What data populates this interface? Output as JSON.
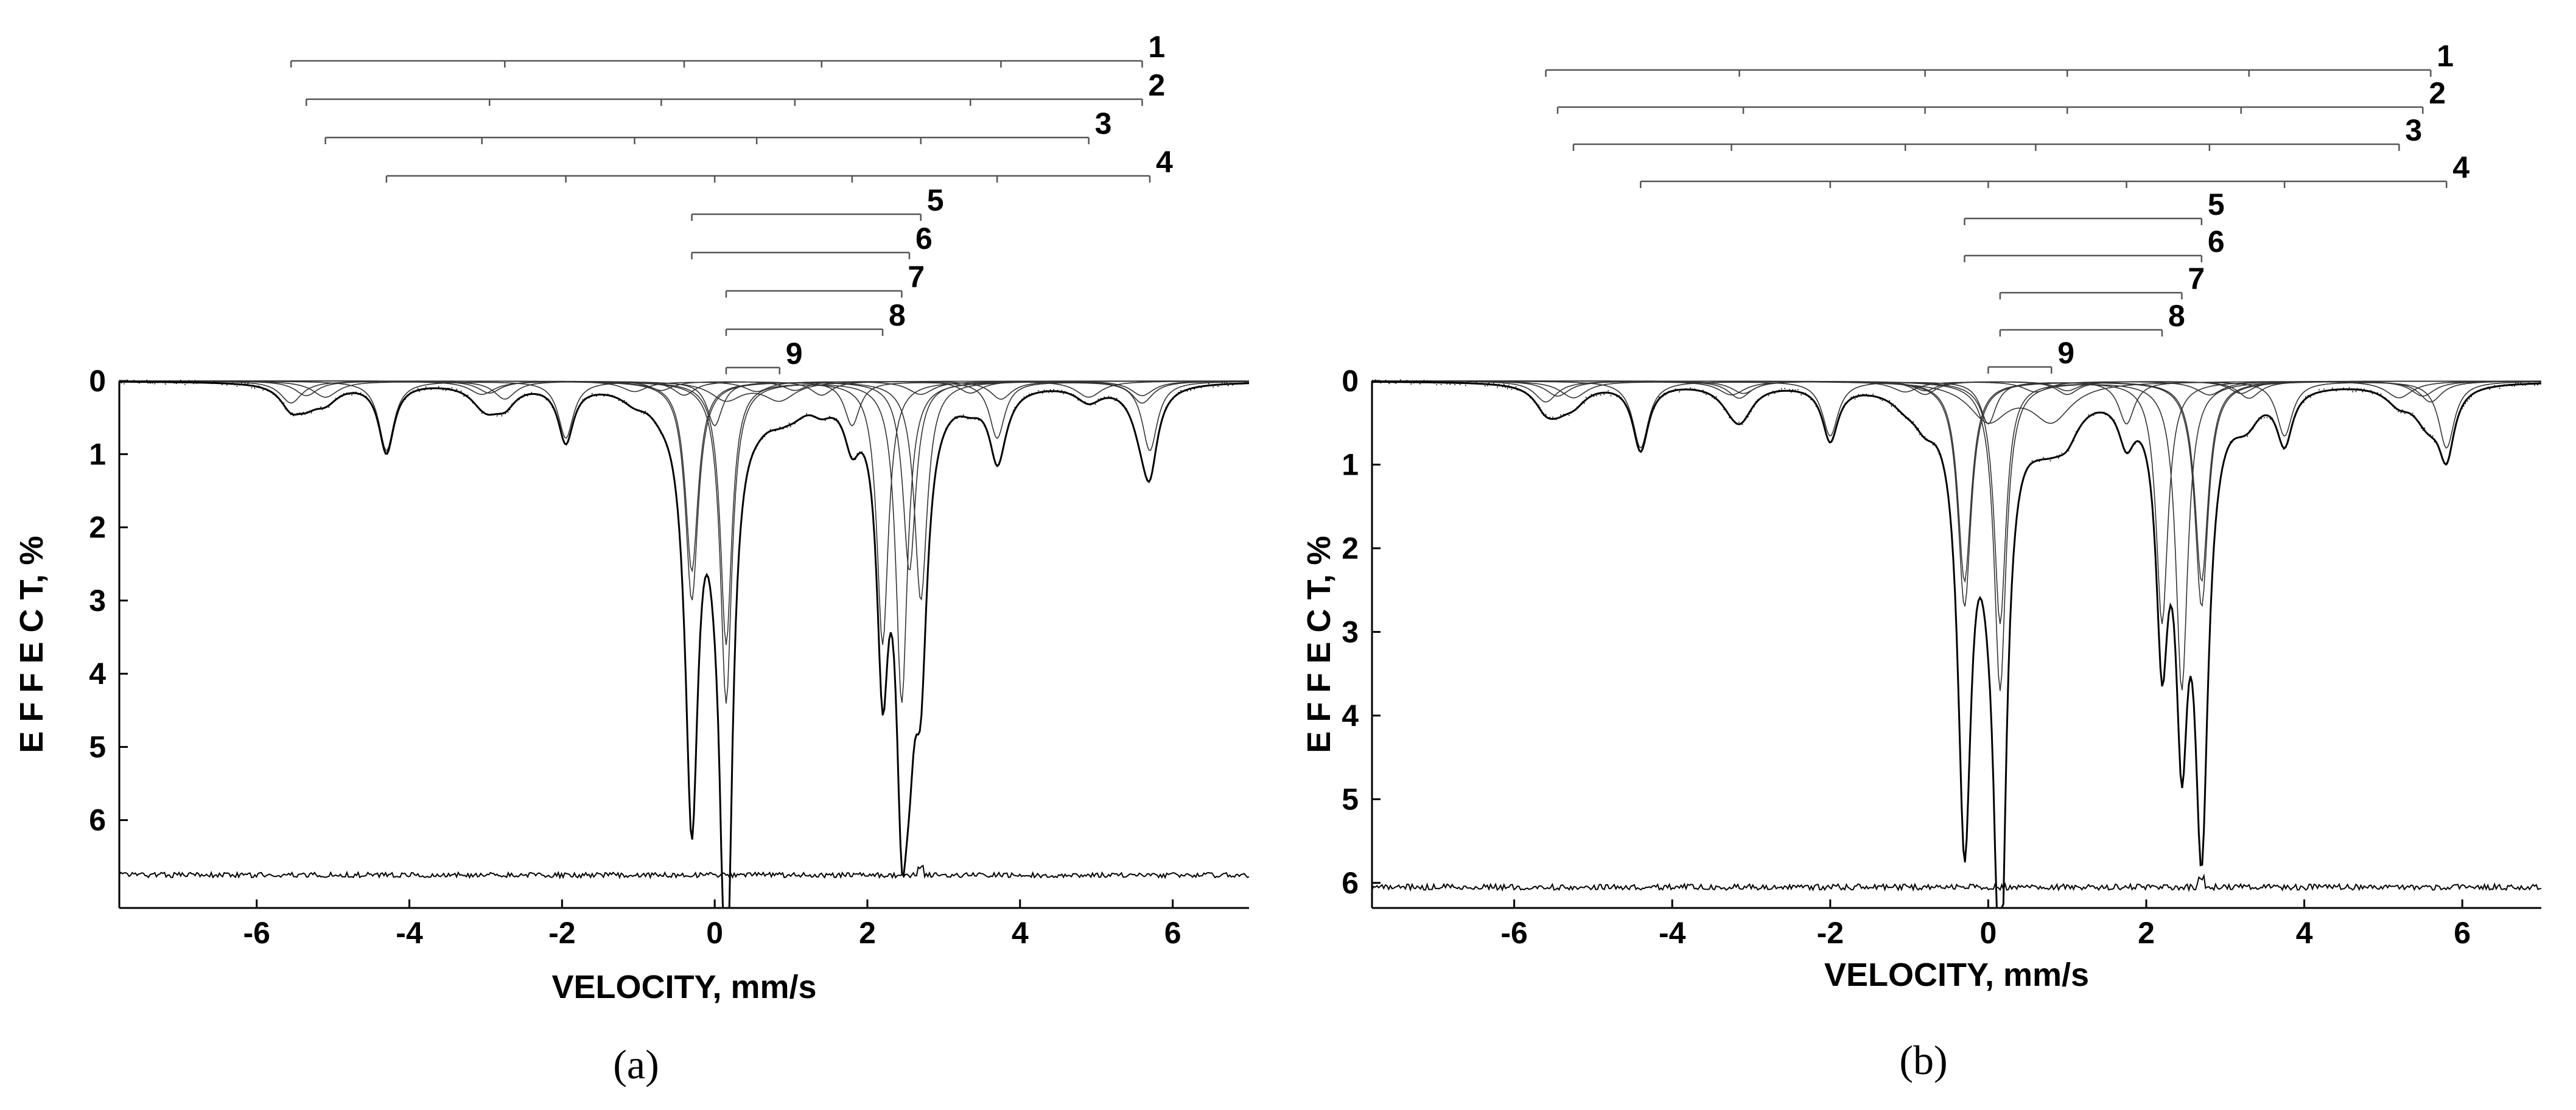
{
  "chart_data": [
    {
      "type": "line",
      "panel_label": "(a)",
      "xlabel": "VELOCITY,  mm/s",
      "ylabel": "E F F E C T, %",
      "xlim": [
        -7.8,
        7.0
      ],
      "ylim": [
        0,
        7.2
      ],
      "y_inverted": true,
      "x_ticks": [
        -6,
        -4,
        -2,
        0,
        2,
        4,
        6
      ],
      "y_ticks": [
        0,
        1,
        2,
        3,
        4,
        5,
        6
      ],
      "residual_baseline": 6.75,
      "subspectra": [
        {
          "label": "1",
          "type": "sextet",
          "lines": [
            -5.55,
            -2.75,
            -0.4,
            1.4,
            3.75,
            5.6
          ]
        },
        {
          "label": "2",
          "type": "sextet",
          "lines": [
            -5.35,
            -2.95,
            -0.7,
            1.05,
            3.35,
            5.6
          ]
        },
        {
          "label": "3",
          "type": "sextet",
          "lines": [
            -5.1,
            -3.05,
            -1.05,
            0.55,
            2.7,
            4.9
          ]
        },
        {
          "label": "4",
          "type": "sextet",
          "lines": [
            -4.3,
            -1.95,
            0.0,
            1.8,
            3.7,
            5.7
          ]
        },
        {
          "label": "5",
          "type": "doublet",
          "lines": [
            -0.3,
            2.7
          ]
        },
        {
          "label": "6",
          "type": "doublet",
          "lines": [
            -0.3,
            2.55
          ]
        },
        {
          "label": "7",
          "type": "doublet",
          "lines": [
            0.15,
            2.45
          ]
        },
        {
          "label": "8",
          "type": "doublet",
          "lines": [
            0.15,
            2.2
          ]
        },
        {
          "label": "9",
          "type": "doublet",
          "lines": [
            0.15,
            0.85
          ]
        }
      ]
    },
    {
      "type": "line",
      "panel_label": "(b)",
      "xlabel": "VELOCITY,  mm/s",
      "ylabel": "E F F E C T, %",
      "xlim": [
        -7.8,
        7.0
      ],
      "ylim": [
        0,
        6.3
      ],
      "y_inverted": true,
      "x_ticks": [
        -6,
        -4,
        -2,
        0,
        2,
        4,
        6
      ],
      "y_ticks": [
        0,
        1,
        2,
        3,
        4,
        5,
        6
      ],
      "residual_baseline": 6.05,
      "subspectra": [
        {
          "label": "1",
          "type": "sextet",
          "lines": [
            -5.6,
            -3.15,
            -0.8,
            1.0,
            3.3,
            5.6
          ]
        },
        {
          "label": "2",
          "type": "sextet",
          "lines": [
            -5.45,
            -3.1,
            -0.8,
            1.0,
            3.2,
            5.5
          ]
        },
        {
          "label": "3",
          "type": "sextet",
          "lines": [
            -5.25,
            -3.25,
            -1.05,
            0.6,
            2.8,
            5.2
          ]
        },
        {
          "label": "4",
          "type": "sextet",
          "lines": [
            -4.4,
            -2.0,
            0.0,
            1.75,
            3.75,
            5.8
          ]
        },
        {
          "label": "5",
          "type": "doublet",
          "lines": [
            -0.3,
            2.7
          ]
        },
        {
          "label": "6",
          "type": "doublet",
          "lines": [
            -0.3,
            2.7
          ]
        },
        {
          "label": "7",
          "type": "doublet",
          "lines": [
            0.15,
            2.45
          ]
        },
        {
          "label": "8",
          "type": "doublet",
          "lines": [
            0.15,
            2.2
          ]
        },
        {
          "label": "9",
          "type": "doublet",
          "lines": [
            0.0,
            0.8
          ]
        }
      ]
    }
  ]
}
